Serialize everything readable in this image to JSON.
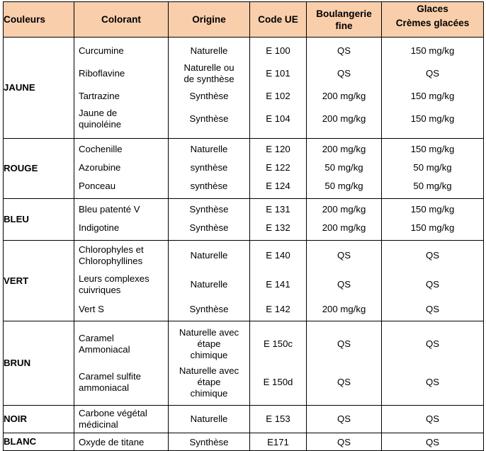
{
  "headers": {
    "couleurs": "Couleurs",
    "colorant": "Colorant",
    "origine": "Origine",
    "code": "Code UE",
    "boulangerie": "Boulangerie\nfine",
    "glaces": "Glaces\nCrèmes glacées"
  },
  "groups": [
    {
      "color": "JAUNE",
      "rows": [
        {
          "colorant": "Curcumine",
          "origine": "Naturelle",
          "code": "E 100",
          "boulangerie": "QS",
          "glaces": "150 mg/kg"
        },
        {
          "colorant": "Riboflavine",
          "origine": "Naturelle ou\nde synthèse",
          "code": "E 101",
          "boulangerie": "QS",
          "glaces": "QS"
        },
        {
          "colorant": "Tartrazine",
          "origine": "Synthèse",
          "code": "E 102",
          "boulangerie": "200 mg/kg",
          "glaces": "150 mg/kg"
        },
        {
          "colorant": "Jaune de\nquinoléine",
          "origine": "Synthèse",
          "code": "E 104",
          "boulangerie": "200 mg/kg",
          "glaces": "150 mg/kg"
        }
      ]
    },
    {
      "color": "ROUGE",
      "rows": [
        {
          "colorant": "Cochenille",
          "origine": "Naturelle",
          "code": "E 120",
          "boulangerie": "200 mg/kg",
          "glaces": "150 mg/kg"
        },
        {
          "colorant": "Azorubine",
          "origine": "synthèse",
          "code": "E 122",
          "boulangerie": "50 mg/kg",
          "glaces": "50 mg/kg"
        },
        {
          "colorant": "Ponceau",
          "origine": "synthèse",
          "code": "E 124",
          "boulangerie": "50 mg/kg",
          "glaces": "50 mg/kg"
        }
      ]
    },
    {
      "color": "BLEU",
      "rows": [
        {
          "colorant": "Bleu patenté V",
          "origine": "Synthèse",
          "code": "E 131",
          "boulangerie": "200 mg/kg",
          "glaces": "150 mg/kg"
        },
        {
          "colorant": "Indigotine",
          "origine": "Synthèse",
          "code": "E 132",
          "boulangerie": "200 mg/kg",
          "glaces": "150 mg/kg"
        }
      ]
    },
    {
      "color": "VERT",
      "rows": [
        {
          "colorant": "Chlorophyles et\nChlorophyllines",
          "origine": "Naturelle",
          "code": "E 140",
          "boulangerie": "QS",
          "glaces": "QS"
        },
        {
          "colorant": "Leurs complexes\ncuivriques",
          "origine": "Naturelle",
          "code": "E 141",
          "boulangerie": "QS",
          "glaces": "QS"
        },
        {
          "colorant": "Vert S",
          "origine": "Synthèse",
          "code": "E 142",
          "boulangerie": "200 mg/kg",
          "glaces": "QS"
        }
      ]
    },
    {
      "color": "BRUN",
      "rows": [
        {
          "colorant": "Caramel\nAmmoniacal",
          "origine": "Naturelle avec\nétape\nchimique",
          "code": "E 150c",
          "boulangerie": "QS",
          "glaces": "QS"
        },
        {
          "colorant": "Caramel sulfite\nammoniacal",
          "origine": "Naturelle avec\nétape\nchimique",
          "code": "E 150d",
          "boulangerie": "QS",
          "glaces": "QS"
        }
      ]
    },
    {
      "color": "NOIR",
      "rows": [
        {
          "colorant": "Carbone végétal\nmédicinal",
          "origine": "Naturelle",
          "code": "E 153",
          "boulangerie": "QS",
          "glaces": "QS"
        }
      ]
    },
    {
      "color": "BLANC",
      "rows": [
        {
          "colorant": "Oxyde de titane",
          "origine": "Synthèse",
          "code": "E171",
          "boulangerie": "QS",
          "glaces": "QS"
        }
      ]
    }
  ]
}
